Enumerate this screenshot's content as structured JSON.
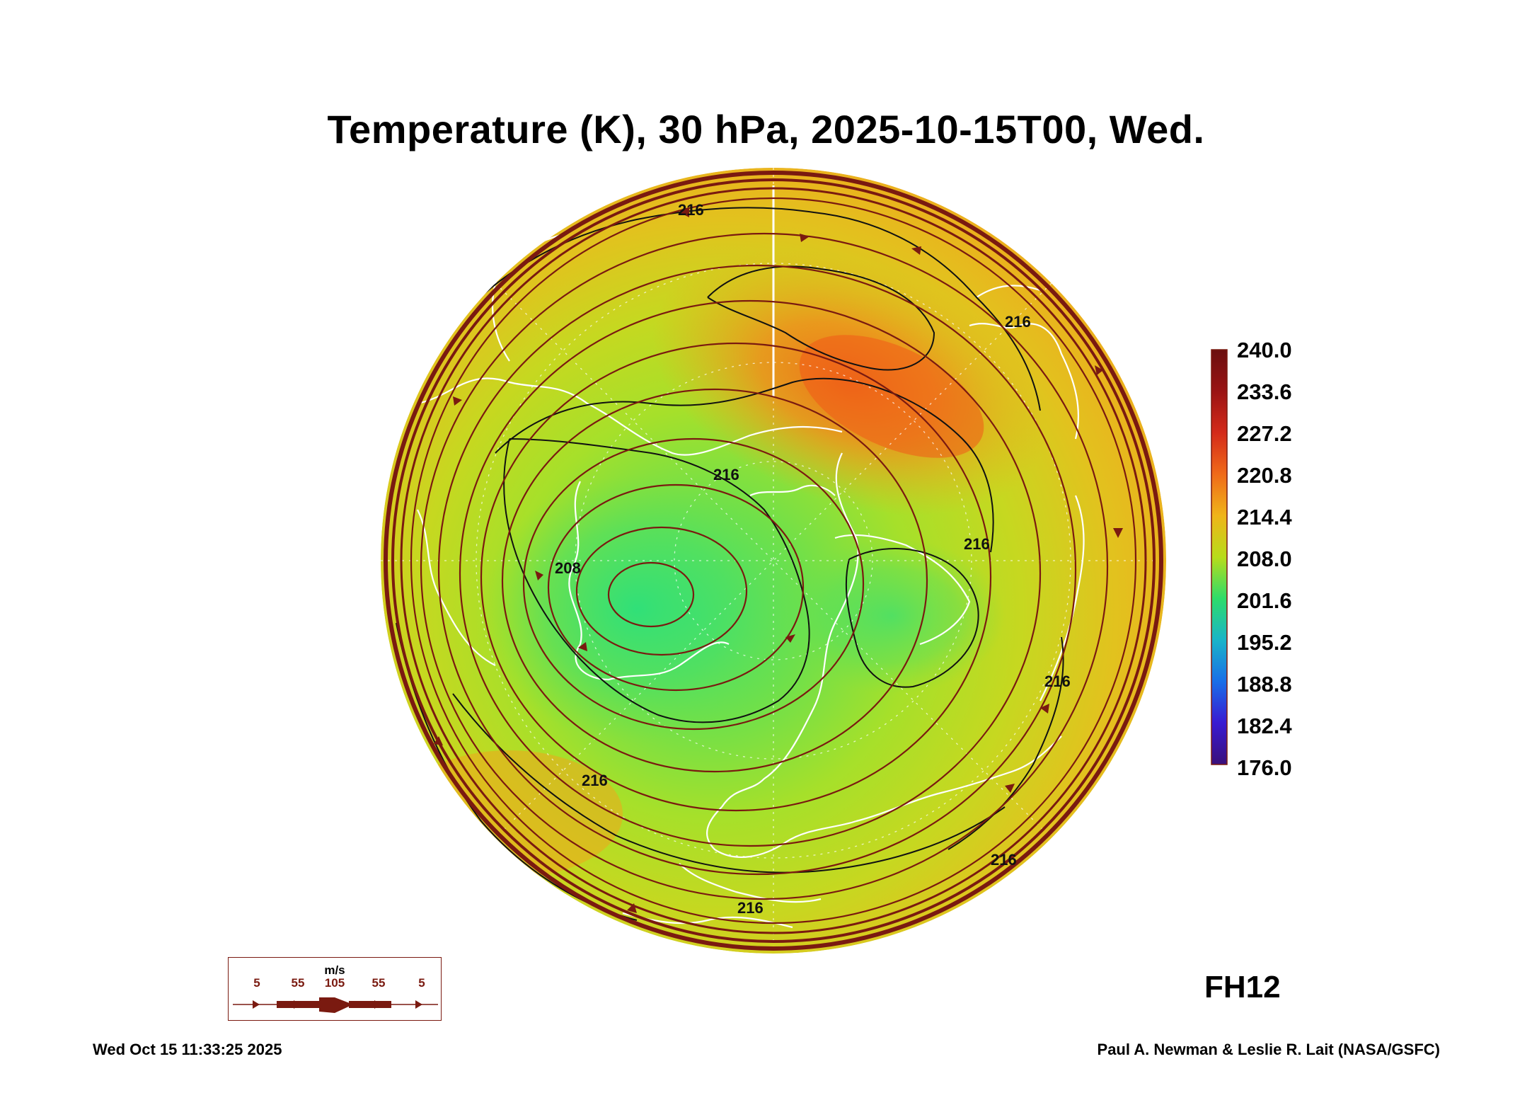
{
  "title": "Temperature (K), 30 hPa, 2025-10-15T00, Wed.",
  "colorbar": {
    "labels": [
      "240.0",
      "233.6",
      "227.2",
      "220.8",
      "214.4",
      "208.0",
      "201.6",
      "195.2",
      "188.8",
      "182.4",
      "176.0"
    ],
    "colors": [
      "#6b0f0f",
      "#b31a1a",
      "#e8331a",
      "#f27a1a",
      "#f0b41a",
      "#c8d91a",
      "#7fd93a",
      "#2edc6a",
      "#1ab4c8",
      "#1a6ee8",
      "#3a1ad2",
      "#3a0f7a"
    ]
  },
  "contour_labels": [
    "216",
    "216",
    "216",
    "216",
    "216",
    "208",
    "216",
    "216",
    "216"
  ],
  "wind_legend": {
    "unit": "m/s",
    "values": [
      "5",
      "55",
      "105",
      "55",
      "5"
    ]
  },
  "forecast_hour": "FH12",
  "footer": {
    "timestamp": "Wed Oct 15 11:33:25 2025",
    "credit": "Paul A. Newman & Leslie R. Lait (NASA/GSFC)"
  },
  "colors": {
    "stream": "#7a1a10",
    "coast": "#ffffff",
    "contour": "#111111"
  }
}
